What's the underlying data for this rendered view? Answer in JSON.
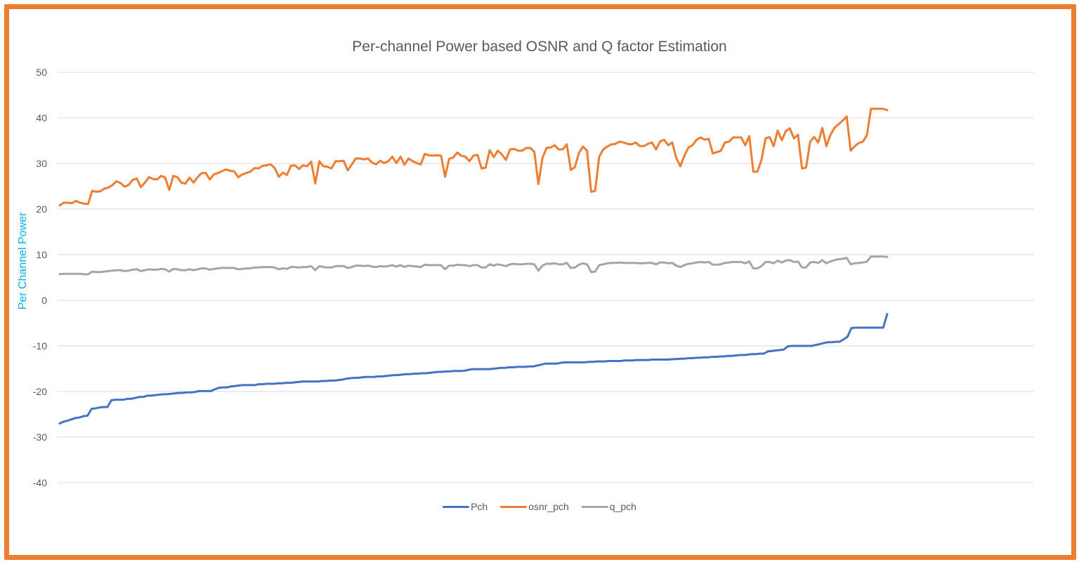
{
  "chart_data": {
    "type": "line",
    "title": "Per-channel Power based OSNR and Q factor Estimation",
    "ylabel": "Per Channel Power",
    "xlabel": "",
    "ylim": [
      -40,
      50
    ],
    "yticks": [
      50,
      40,
      30,
      20,
      10,
      0,
      -10,
      -20,
      -30,
      -40
    ],
    "grid": true,
    "legend_position": "bottom",
    "series": [
      {
        "name": "Pch",
        "color": "#4472C4",
        "values": [
          -27,
          -26.6,
          -26.4,
          -26.1,
          -25.8,
          -25.7,
          -25.4,
          -25.3,
          -23.8,
          -23.7,
          -23.5,
          -23.4,
          -23.4,
          -21.9,
          -21.8,
          -21.8,
          -21.8,
          -21.6,
          -21.6,
          -21.4,
          -21.2,
          -21.2,
          -20.9,
          -20.9,
          -20.8,
          -20.7,
          -20.6,
          -20.6,
          -20.5,
          -20.4,
          -20.3,
          -20.3,
          -20.2,
          -20.2,
          -20.1,
          -19.9,
          -19.9,
          -19.9,
          -19.9,
          -19.5,
          -19.2,
          -19.1,
          -19.1,
          -18.9,
          -18.8,
          -18.7,
          -18.6,
          -18.6,
          -18.6,
          -18.6,
          -18.4,
          -18.4,
          -18.3,
          -18.3,
          -18.3,
          -18.2,
          -18.2,
          -18.1,
          -18.1,
          -18.0,
          -17.9,
          -17.8,
          -17.8,
          -17.8,
          -17.8,
          -17.8,
          -17.7,
          -17.7,
          -17.6,
          -17.6,
          -17.5,
          -17.4,
          -17.2,
          -17.1,
          -17.0,
          -17.0,
          -16.9,
          -16.8,
          -16.8,
          -16.8,
          -16.7,
          -16.7,
          -16.6,
          -16.5,
          -16.4,
          -16.4,
          -16.3,
          -16.2,
          -16.2,
          -16.1,
          -16.1,
          -16.0,
          -16.0,
          -15.9,
          -15.8,
          -15.7,
          -15.7,
          -15.6,
          -15.6,
          -15.5,
          -15.5,
          -15.5,
          -15.4,
          -15.2,
          -15.1,
          -15.1,
          -15.1,
          -15.1,
          -15.1,
          -15.0,
          -14.9,
          -14.8,
          -14.8,
          -14.7,
          -14.7,
          -14.6,
          -14.6,
          -14.6,
          -14.5,
          -14.5,
          -14.3,
          -14.1,
          -13.9,
          -13.9,
          -13.9,
          -13.9,
          -13.7,
          -13.6,
          -13.6,
          -13.6,
          -13.6,
          -13.6,
          -13.6,
          -13.5,
          -13.5,
          -13.4,
          -13.4,
          -13.4,
          -13.3,
          -13.3,
          -13.3,
          -13.3,
          -13.2,
          -13.2,
          -13.2,
          -13.1,
          -13.1,
          -13.1,
          -13.1,
          -13.0,
          -13.0,
          -13.0,
          -13.0,
          -13.0,
          -12.9,
          -12.9,
          -12.8,
          -12.8,
          -12.7,
          -12.7,
          -12.6,
          -12.6,
          -12.5,
          -12.5,
          -12.4,
          -12.4,
          -12.3,
          -12.3,
          -12.2,
          -12.2,
          -12.1,
          -12.0,
          -12.0,
          -11.9,
          -11.8,
          -11.8,
          -11.7,
          -11.7,
          -11.2,
          -11.1,
          -11.0,
          -10.9,
          -10.8,
          -10.1,
          -10.0,
          -10.0,
          -10.0,
          -10.0,
          -10.0,
          -10.0,
          -9.8,
          -9.6,
          -9.4,
          -9.2,
          -9.2,
          -9.1,
          -9.1,
          -8.6,
          -8.0,
          -6.1,
          -6.0,
          -6.0,
          -6.0,
          -6.0,
          -6.0,
          -6.0,
          -6.0,
          -6.0,
          -3.0
        ]
      },
      {
        "name": "osnr_pch",
        "color": "#ED7D31",
        "values": [
          20.8,
          21.4,
          21.4,
          21.3,
          21.8,
          21.4,
          21.2,
          21.1,
          24,
          23.8,
          23.9,
          24.5,
          24.7,
          25.3,
          26.1,
          25.7,
          24.9,
          25.3,
          26.4,
          26.7,
          24.8,
          25.8,
          27,
          26.6,
          26.5,
          27.3,
          26.9,
          24.2,
          27.3,
          27,
          25.8,
          25.6,
          26.9,
          25.8,
          27,
          27.9,
          27.9,
          26.5,
          27.6,
          27.9,
          28.3,
          28.7,
          28.4,
          28.3,
          27,
          27.6,
          27.9,
          28.2,
          29,
          28.9,
          29.5,
          29.6,
          29.8,
          29,
          27.1,
          28,
          27.5,
          29.5,
          29.6,
          28.8,
          29.6,
          29.4,
          30.4,
          25.6,
          30.5,
          29.4,
          29.3,
          28.9,
          30.5,
          30.5,
          30.6,
          28.5,
          29.8,
          31.1,
          31.1,
          30.9,
          31.1,
          30.2,
          29.8,
          30.6,
          30.1,
          30.5,
          31.5,
          30.1,
          31.5,
          29.7,
          31.1,
          30.5,
          30.1,
          29.8,
          32.1,
          31.8,
          31.7,
          31.8,
          31.7,
          27.1,
          31,
          31.3,
          32.4,
          31.7,
          31.5,
          30.5,
          31.7,
          31.9,
          28.9,
          29.1,
          32.9,
          31.4,
          32.8,
          32,
          30.8,
          33.1,
          33.2,
          32.8,
          32.8,
          33.4,
          33.4,
          32.6,
          25.5,
          31.2,
          33.4,
          33.5,
          34,
          33.1,
          33.1,
          34.2,
          28.6,
          29.2,
          32.3,
          33.7,
          32.8,
          23.8,
          24,
          31.5,
          33.1,
          33.7,
          34.2,
          34.3,
          34.8,
          34.6,
          34.3,
          34.2,
          34.6,
          33.8,
          33.8,
          34.3,
          34.6,
          33.1,
          34.8,
          35.2,
          34,
          34.6,
          31.2,
          29.4,
          31.7,
          33.5,
          34,
          35.2,
          35.7,
          35.2,
          35.4,
          32.2,
          32.5,
          32.8,
          34.6,
          34.8,
          35.7,
          35.7,
          35.7,
          34,
          36,
          28.2,
          28.2,
          30.8,
          35.5,
          35.8,
          33.8,
          37.2,
          35.1,
          37.1,
          37.7,
          35.5,
          36.3,
          28.9,
          29.1,
          34.8,
          35.8,
          34.6,
          37.8,
          33.8,
          36.3,
          37.8,
          38.6,
          39.4,
          40.3,
          32.8,
          33.8,
          34.5,
          34.8,
          36.2,
          42,
          42,
          42,
          42,
          41.7
        ]
      },
      {
        "name": "q_pch",
        "color": "#A5A5A5",
        "values": [
          5.7,
          5.8,
          5.8,
          5.8,
          5.8,
          5.8,
          5.7,
          5.7,
          6.3,
          6.2,
          6.2,
          6.3,
          6.4,
          6.5,
          6.6,
          6.6,
          6.4,
          6.5,
          6.7,
          6.8,
          6.4,
          6.6,
          6.8,
          6.7,
          6.7,
          6.9,
          6.8,
          6.3,
          6.9,
          6.8,
          6.6,
          6.6,
          6.8,
          6.6,
          6.8,
          7.0,
          7.0,
          6.7,
          6.9,
          7.0,
          7.1,
          7.1,
          7.1,
          7.1,
          6.8,
          6.9,
          7.0,
          7.0,
          7.2,
          7.2,
          7.3,
          7.3,
          7.3,
          7.2,
          6.8,
          7.0,
          6.9,
          7.3,
          7.3,
          7.2,
          7.3,
          7.3,
          7.5,
          6.6,
          7.5,
          7.3,
          7.2,
          7.2,
          7.5,
          7.5,
          7.5,
          7.1,
          7.3,
          7.6,
          7.6,
          7.5,
          7.6,
          7.4,
          7.3,
          7.5,
          7.4,
          7.5,
          7.7,
          7.4,
          7.7,
          7.3,
          7.6,
          7.5,
          7.4,
          7.3,
          7.8,
          7.7,
          7.7,
          7.7,
          7.7,
          6.8,
          7.6,
          7.6,
          7.8,
          7.7,
          7.7,
          7.5,
          7.7,
          7.7,
          7.2,
          7.2,
          7.9,
          7.6,
          7.9,
          7.7,
          7.5,
          7.9,
          8.0,
          7.9,
          7.9,
          8.0,
          8.0,
          7.9,
          6.5,
          7.6,
          8.0,
          8.0,
          8.1,
          7.9,
          7.9,
          8.2,
          7.1,
          7.2,
          7.8,
          8.1,
          7.9,
          6.2,
          6.3,
          7.7,
          7.9,
          8.1,
          8.2,
          8.2,
          8.3,
          8.2,
          8.2,
          8.2,
          8.2,
          8.1,
          8.1,
          8.2,
          8.2,
          7.9,
          8.3,
          8.3,
          8.1,
          8.2,
          7.6,
          7.3,
          7.7,
          8.0,
          8.1,
          8.3,
          8.4,
          8.3,
          8.4,
          7.8,
          7.8,
          7.9,
          8.2,
          8.3,
          8.4,
          8.4,
          8.4,
          8.1,
          8.5,
          7.0,
          7.0,
          7.5,
          8.4,
          8.4,
          8.1,
          8.7,
          8.3,
          8.7,
          8.8,
          8.4,
          8.5,
          7.2,
          7.2,
          8.3,
          8.4,
          8.2,
          8.8,
          8.1,
          8.5,
          8.8,
          9.0,
          9.1,
          9.3,
          7.9,
          8.1,
          8.2,
          8.3,
          8.5,
          9.6,
          9.6,
          9.6,
          9.6,
          9.5
        ]
      }
    ]
  },
  "legend": {
    "items": [
      "Pch",
      "osnr_pch",
      "q_pch"
    ]
  },
  "frame_color": "#ED7D31"
}
